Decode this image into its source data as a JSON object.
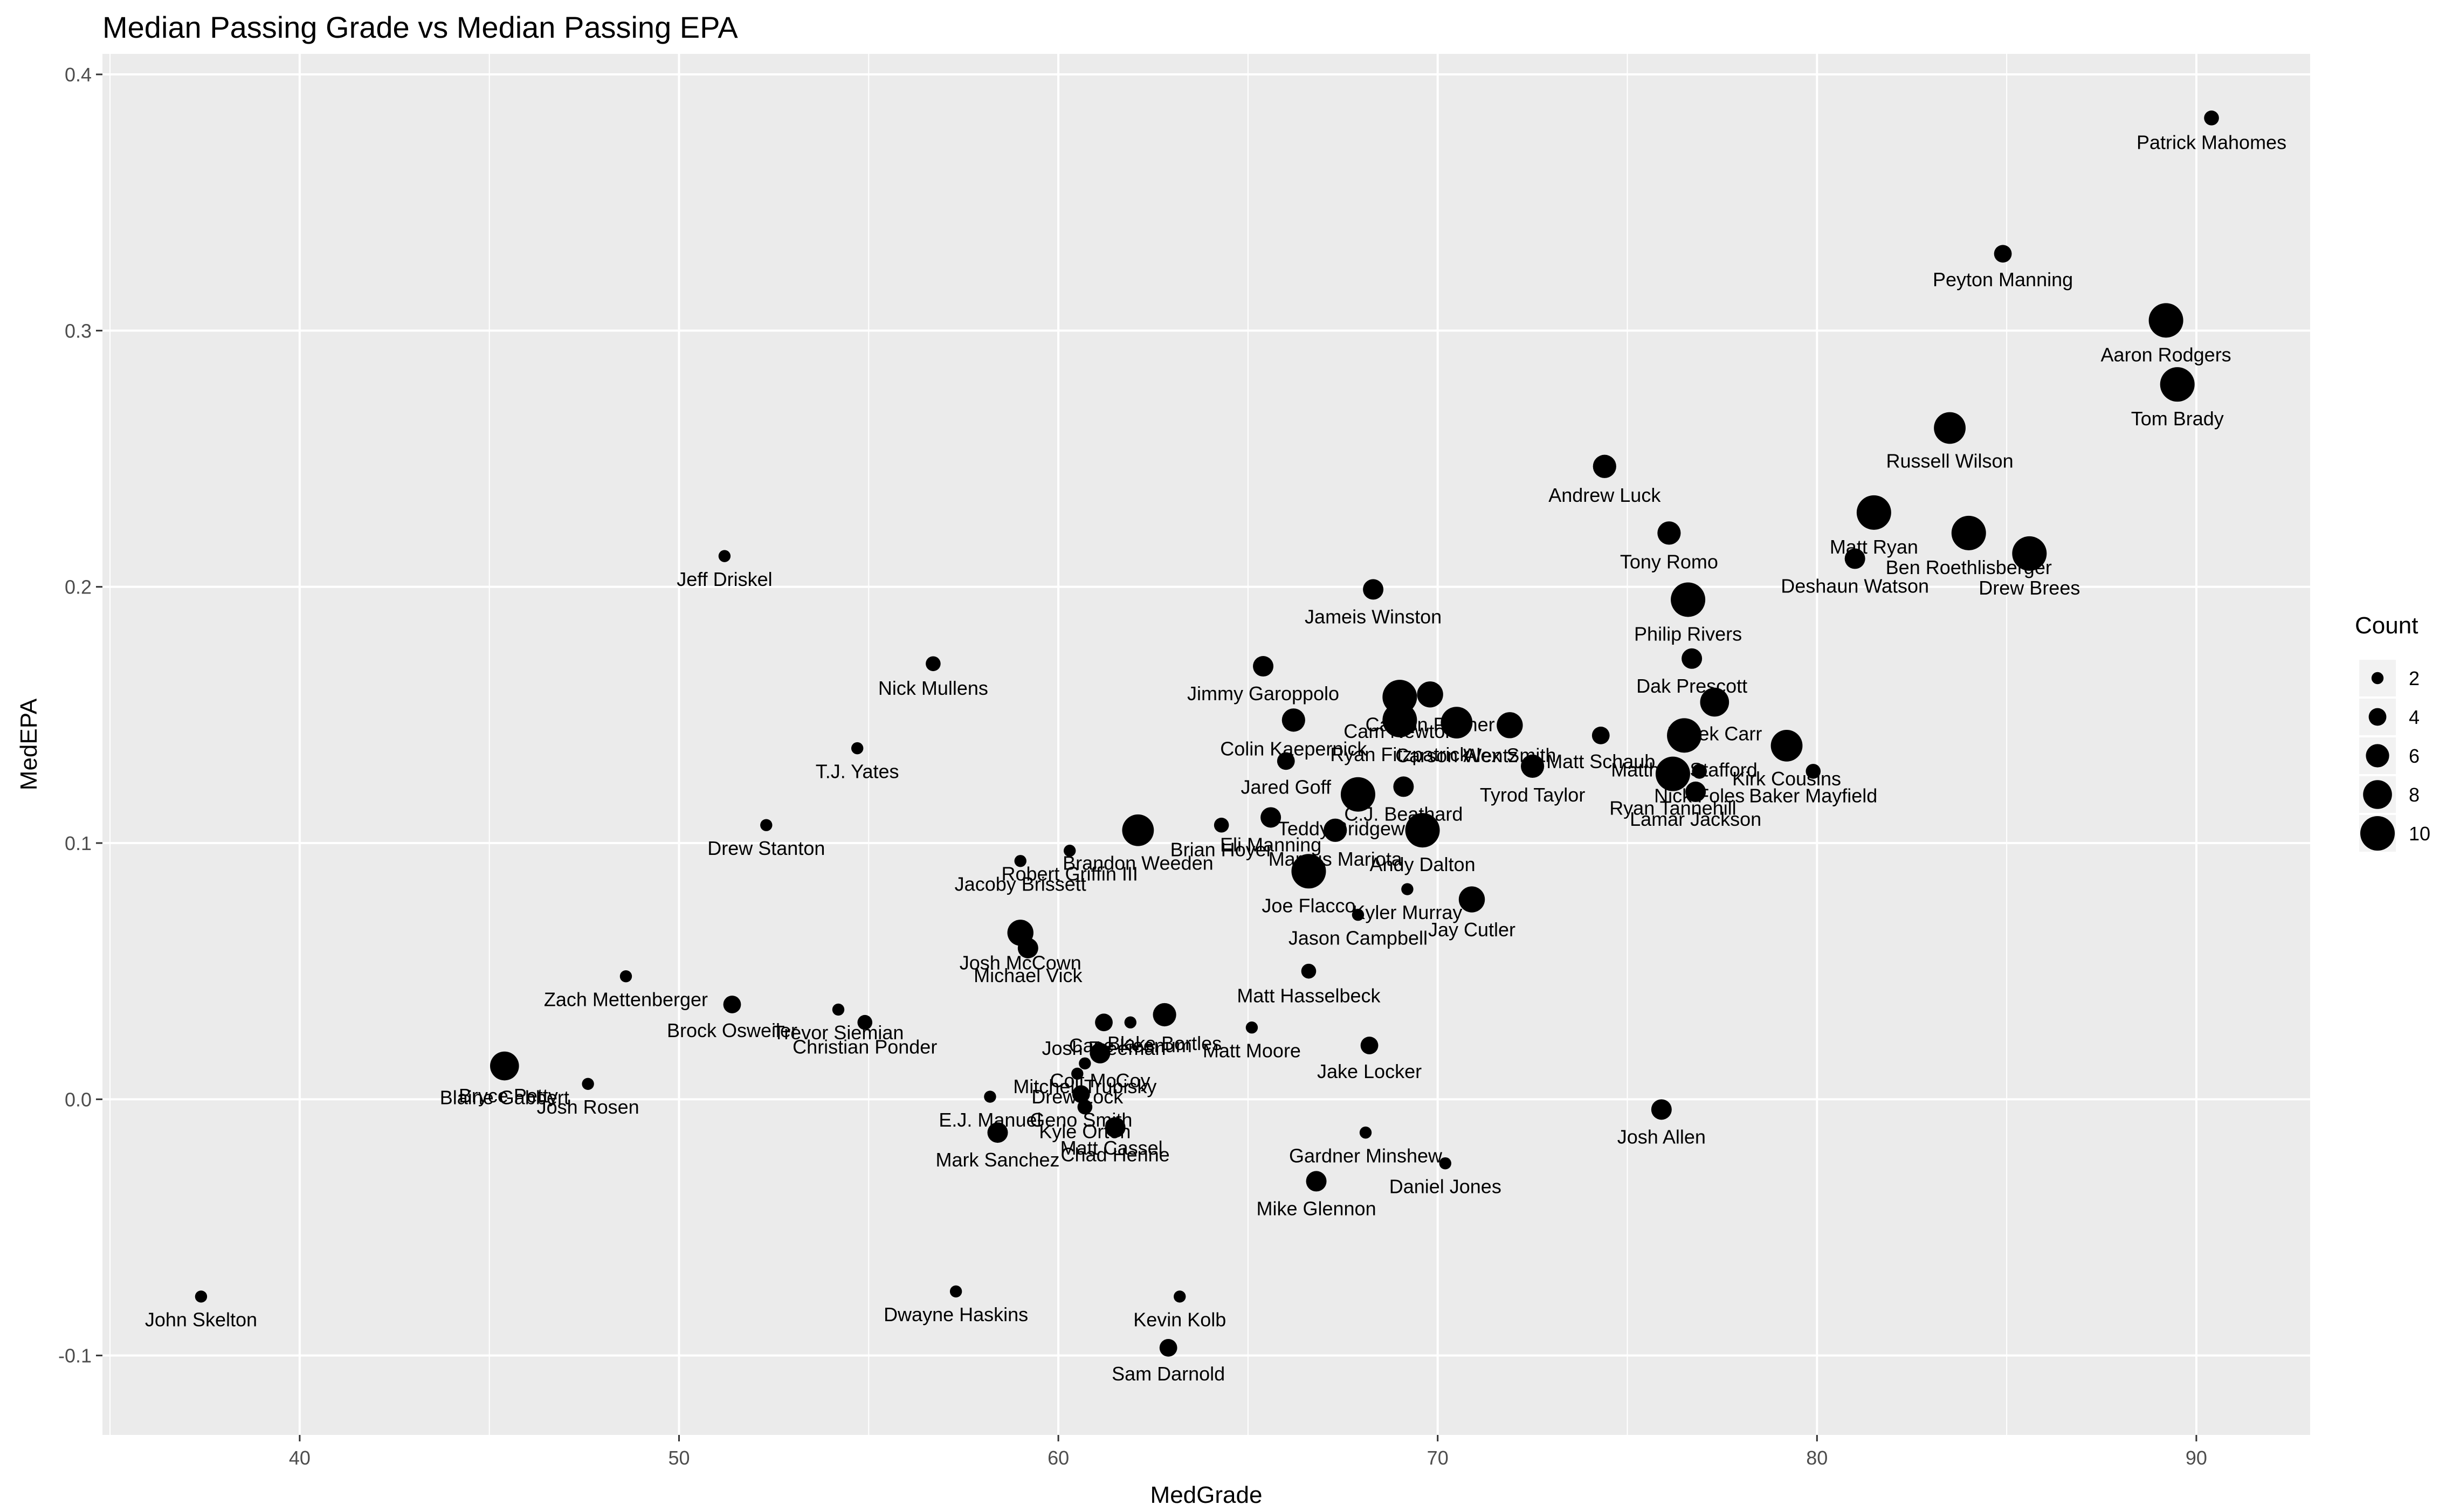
{
  "chart_data": {
    "type": "scatter",
    "title": "Median Passing Grade vs Median Passing EPA",
    "xlabel": "MedGrade",
    "ylabel": "MedEPA",
    "xlim": [
      34.8,
      93.0
    ],
    "ylim": [
      -0.131,
      0.408
    ],
    "x_ticks": [
      40,
      50,
      60,
      70,
      80,
      90
    ],
    "y_ticks": [
      -0.1,
      0.0,
      0.1,
      0.2,
      0.3,
      0.4
    ],
    "x_tick_labels": [
      "40",
      "50",
      "60",
      "70",
      "80",
      "90"
    ],
    "y_tick_labels": [
      "-0.1",
      "0.0",
      "0.1",
      "0.2",
      "0.3",
      "0.4"
    ],
    "grid": true,
    "legend": {
      "title": "Count",
      "position": "right",
      "entries": [
        {
          "label": "2",
          "count": 2
        },
        {
          "label": "4",
          "count": 4
        },
        {
          "label": "6",
          "count": 6
        },
        {
          "label": "8",
          "count": 8
        },
        {
          "label": "10",
          "count": 10
        }
      ]
    },
    "points": [
      {
        "name": "Patrick Mahomes",
        "x": 90.4,
        "y": 0.383,
        "count": 3
      },
      {
        "name": "Peyton Manning",
        "x": 84.9,
        "y": 0.33,
        "count": 4
      },
      {
        "name": "Aaron Rodgers",
        "x": 89.2,
        "y": 0.304,
        "count": 10
      },
      {
        "name": "Tom Brady",
        "x": 89.5,
        "y": 0.279,
        "count": 10
      },
      {
        "name": "Russell Wilson",
        "x": 83.5,
        "y": 0.262,
        "count": 9
      },
      {
        "name": "Andrew Luck",
        "x": 74.4,
        "y": 0.247,
        "count": 6
      },
      {
        "name": "Matt Ryan",
        "x": 81.5,
        "y": 0.229,
        "count": 10
      },
      {
        "name": "Ben Roethlisberger",
        "x": 84.0,
        "y": 0.221,
        "count": 10
      },
      {
        "name": "Tony Romo",
        "x": 76.1,
        "y": 0.221,
        "count": 6
      },
      {
        "name": "Drew Brees",
        "x": 85.6,
        "y": 0.213,
        "count": 10
      },
      {
        "name": "Deshaun Watson",
        "x": 81.0,
        "y": 0.211,
        "count": 5
      },
      {
        "name": "Jeff Driskel",
        "x": 51.2,
        "y": 0.212,
        "count": 2
      },
      {
        "name": "Jameis Winston",
        "x": 68.3,
        "y": 0.199,
        "count": 5
      },
      {
        "name": "Philip Rivers",
        "x": 76.6,
        "y": 0.195,
        "count": 10
      },
      {
        "name": "Dak Prescott",
        "x": 76.7,
        "y": 0.172,
        "count": 5
      },
      {
        "name": "Nick Mullens",
        "x": 56.7,
        "y": 0.17,
        "count": 3
      },
      {
        "name": "Jimmy Garoppolo",
        "x": 65.4,
        "y": 0.169,
        "count": 5
      },
      {
        "name": "Derek Carr",
        "x": 77.3,
        "y": 0.155,
        "count": 8
      },
      {
        "name": "Cam Newton",
        "x": 69.0,
        "y": 0.157,
        "count": 10
      },
      {
        "name": "Carson Palmer",
        "x": 69.8,
        "y": 0.158,
        "count": 7
      },
      {
        "name": "Carson Wentz",
        "x": 70.5,
        "y": 0.147,
        "count": 9
      },
      {
        "name": "Alex Smith",
        "x": 71.9,
        "y": 0.146,
        "count": 7
      },
      {
        "name": "Ryan Fitzpatrick",
        "x": 69.0,
        "y": 0.148,
        "count": 10
      },
      {
        "name": "Colin Kaepernick",
        "x": 66.2,
        "y": 0.148,
        "count": 6
      },
      {
        "name": "Tyrod Taylor",
        "x": 72.5,
        "y": 0.13,
        "count": 6
      },
      {
        "name": "Matthew Stafford",
        "x": 76.5,
        "y": 0.142,
        "count": 10
      },
      {
        "name": "Kirk Cousins",
        "x": 79.2,
        "y": 0.138,
        "count": 9
      },
      {
        "name": "Matt Schaub",
        "x": 74.3,
        "y": 0.142,
        "count": 4
      },
      {
        "name": "T.J. Yates",
        "x": 54.7,
        "y": 0.137,
        "count": 2
      },
      {
        "name": "Jared Goff",
        "x": 66.0,
        "y": 0.132,
        "count": 4
      },
      {
        "name": "Ryan Tannehill",
        "x": 76.2,
        "y": 0.127,
        "count": 10
      },
      {
        "name": "Baker Mayfield",
        "x": 79.9,
        "y": 0.128,
        "count": 3
      },
      {
        "name": "Lamar Jackson",
        "x": 76.8,
        "y": 0.12,
        "count": 5
      },
      {
        "name": "Nick Foles",
        "x": 76.9,
        "y": 0.128,
        "count": 3
      },
      {
        "name": "C.J. Beathard",
        "x": 69.1,
        "y": 0.122,
        "count": 5
      },
      {
        "name": "Teddy Bridgewater",
        "x": 67.9,
        "y": 0.119,
        "count": 10
      },
      {
        "name": "Eli Manning",
        "x": 65.6,
        "y": 0.11,
        "count": 5
      },
      {
        "name": "Andy Dalton",
        "x": 69.6,
        "y": 0.105,
        "count": 10
      },
      {
        "name": "Marcus Mariota",
        "x": 67.3,
        "y": 0.105,
        "count": 6
      },
      {
        "name": "Brian Hoyer",
        "x": 64.3,
        "y": 0.107,
        "count": 3
      },
      {
        "name": "Drew Stanton",
        "x": 52.3,
        "y": 0.107,
        "count": 2
      },
      {
        "name": "Brandon Weeden",
        "x": 62.1,
        "y": 0.105,
        "count": 9
      },
      {
        "name": "Robert Griffin III",
        "x": 60.3,
        "y": 0.097,
        "count": 2
      },
      {
        "name": "Jacoby Brissett",
        "x": 59.0,
        "y": 0.093,
        "count": 2
      },
      {
        "name": "Joe Flacco",
        "x": 66.6,
        "y": 0.089,
        "count": 10
      },
      {
        "name": "Kyler Murray",
        "x": 69.2,
        "y": 0.082,
        "count": 2
      },
      {
        "name": "Jay Cutler",
        "x": 70.9,
        "y": 0.078,
        "count": 7
      },
      {
        "name": "Jason Campbell",
        "x": 67.9,
        "y": 0.072,
        "count": 2
      },
      {
        "name": "Josh McCown",
        "x": 59.0,
        "y": 0.065,
        "count": 7
      },
      {
        "name": "Michael Vick",
        "x": 59.2,
        "y": 0.059,
        "count": 5
      },
      {
        "name": "Matt Hasselbeck",
        "x": 66.6,
        "y": 0.05,
        "count": 3
      },
      {
        "name": "Zach Mettenberger",
        "x": 48.6,
        "y": 0.048,
        "count": 2
      },
      {
        "name": "Brock Osweiler",
        "x": 51.4,
        "y": 0.037,
        "count": 4
      },
      {
        "name": "Trevor Siemian",
        "x": 54.2,
        "y": 0.035,
        "count": 2
      },
      {
        "name": "Christian Ponder",
        "x": 54.9,
        "y": 0.03,
        "count": 3
      },
      {
        "name": "Blake Bortles",
        "x": 62.8,
        "y": 0.033,
        "count": 6
      },
      {
        "name": "Matt Moore",
        "x": 65.1,
        "y": 0.028,
        "count": 2
      },
      {
        "name": "Josh Freeman",
        "x": 61.2,
        "y": 0.03,
        "count": 4
      },
      {
        "name": "Case Keenum",
        "x": 61.9,
        "y": 0.03,
        "count": 2
      },
      {
        "name": "Colt McCoy",
        "x": 61.1,
        "y": 0.018,
        "count": 5
      },
      {
        "name": "Jake Locker",
        "x": 68.2,
        "y": 0.021,
        "count": 4
      },
      {
        "name": "Mitchell Trubisky",
        "x": 60.7,
        "y": 0.014,
        "count": 2
      },
      {
        "name": "Drew Lock",
        "x": 60.5,
        "y": 0.01,
        "count": 2
      },
      {
        "name": "Geno Smith",
        "x": 60.6,
        "y": 0.002,
        "count": 4
      },
      {
        "name": "Blaine Gabbert",
        "x": 45.4,
        "y": 0.013,
        "count": 8
      },
      {
        "name": "Bryce Petty",
        "x": 45.5,
        "y": 0.011,
        "count": 3
      },
      {
        "name": "Josh Rosen",
        "x": 47.6,
        "y": 0.006,
        "count": 2
      },
      {
        "name": "E.J. Manuel",
        "x": 58.2,
        "y": 0.001,
        "count": 2
      },
      {
        "name": "Chad Henne",
        "x": 61.5,
        "y": -0.011,
        "count": 5
      },
      {
        "name": "Kyle Orton",
        "x": 60.7,
        "y": -0.003,
        "count": 3
      },
      {
        "name": "Mark Sanchez",
        "x": 58.4,
        "y": -0.013,
        "count": 5
      },
      {
        "name": "Matt Cassel",
        "x": 61.4,
        "y": -0.01,
        "count": 2
      },
      {
        "name": "Josh Allen",
        "x": 75.9,
        "y": -0.004,
        "count": 5
      },
      {
        "name": "Gardner Minshew",
        "x": 68.1,
        "y": -0.013,
        "count": 2
      },
      {
        "name": "Daniel Jones",
        "x": 70.2,
        "y": -0.025,
        "count": 2
      },
      {
        "name": "Mike Glennon",
        "x": 66.8,
        "y": -0.032,
        "count": 5
      },
      {
        "name": "John Skelton",
        "x": 37.4,
        "y": -0.077,
        "count": 2
      },
      {
        "name": "Dwayne Haskins",
        "x": 57.3,
        "y": -0.075,
        "count": 2
      },
      {
        "name": "Kevin Kolb",
        "x": 63.2,
        "y": -0.077,
        "count": 2
      },
      {
        "name": "Sam Darnold",
        "x": 62.9,
        "y": -0.097,
        "count": 4
      }
    ]
  }
}
